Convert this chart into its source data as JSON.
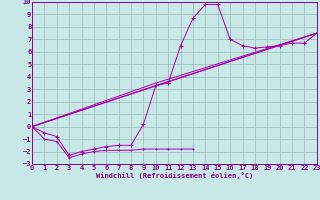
{
  "bg_color": "#c8e8e8",
  "grid_color": "#a0c0c0",
  "line_color": "#aa00aa",
  "xlim": [
    0,
    23
  ],
  "ylim": [
    -3,
    10
  ],
  "xticks": [
    0,
    1,
    2,
    3,
    4,
    5,
    6,
    7,
    8,
    9,
    10,
    11,
    12,
    13,
    14,
    15,
    16,
    17,
    18,
    19,
    20,
    21,
    22,
    23
  ],
  "yticks": [
    -3,
    -2,
    -1,
    0,
    1,
    2,
    3,
    4,
    5,
    6,
    7,
    8,
    9,
    10
  ],
  "xlabel": "Windchill (Refroidissement éolien,°C)",
  "series_main_x": [
    0,
    1,
    2,
    3,
    4,
    5,
    6,
    7,
    8,
    9,
    10,
    11,
    12,
    13,
    14,
    15,
    16,
    17,
    18,
    19,
    20,
    21,
    22,
    23
  ],
  "series_main_y": [
    0.0,
    -0.5,
    -0.8,
    -2.3,
    -2.0,
    -1.8,
    -1.6,
    -1.5,
    -1.5,
    0.2,
    3.3,
    3.5,
    6.5,
    8.7,
    9.8,
    9.8,
    7.0,
    6.5,
    6.3,
    6.4,
    6.5,
    6.7,
    6.7,
    7.5
  ],
  "series_low_x": [
    0,
    1,
    2,
    3,
    4,
    5,
    6,
    7,
    8,
    9,
    10,
    11,
    12,
    13
  ],
  "series_low_y": [
    0.0,
    -1.0,
    -1.2,
    -2.5,
    -2.2,
    -2.0,
    -1.9,
    -1.9,
    -1.9,
    -1.8,
    -1.8,
    -1.8,
    -1.8,
    -1.8
  ],
  "series_line1_x": [
    0,
    23
  ],
  "series_line1_y": [
    0.0,
    7.5
  ],
  "series_line2_x": [
    0,
    10,
    23
  ],
  "series_line2_y": [
    0.0,
    3.3,
    7.5
  ],
  "series_line3_x": [
    0,
    10,
    23
  ],
  "series_line3_y": [
    0.0,
    3.5,
    7.5
  ]
}
